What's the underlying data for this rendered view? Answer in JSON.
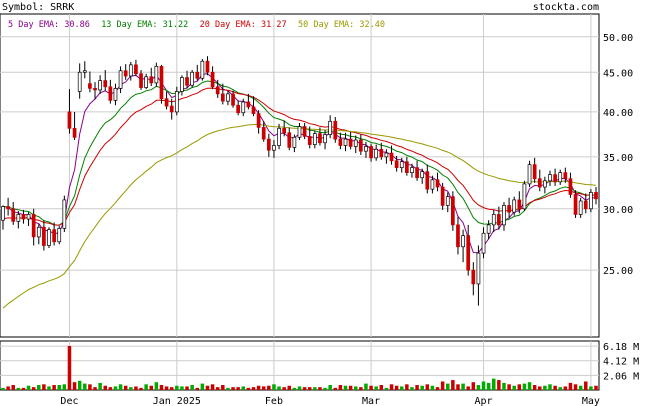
{
  "header": {
    "symbol_label": "Symbol: SRRK",
    "brand": "stockta.com"
  },
  "ema_legend": [
    {
      "label": "5 Day EMA: 30.86",
      "color": "#8b008b"
    },
    {
      "label": "13 Day EMA: 31.22",
      "color": "#008000"
    },
    {
      "label": "20 Day EMA: 31.27",
      "color": "#cc0000"
    },
    {
      "label": "50 Day EMA: 32.40",
      "color": "#999900"
    }
  ],
  "colors": {
    "up": "#00aa00",
    "down": "#cc0000",
    "grid": "#cccccc",
    "wick": "#000000"
  },
  "chart_data": {
    "type": "candlestick",
    "price_axis": {
      "ticks": [
        25,
        30,
        35,
        40,
        45,
        50
      ],
      "tick_labels": [
        "25.00",
        "30.00",
        "35.00",
        "40.00",
        "45.00",
        "50.00"
      ],
      "ylim": [
        20.5,
        53.5
      ],
      "scale": "log"
    },
    "volume_axis": {
      "ticks": [
        2.06,
        4.12,
        6.18
      ],
      "tick_labels": [
        "2.06 M",
        "4.12 M",
        "6.18 M"
      ],
      "ylim": [
        0,
        6.9
      ]
    },
    "month_labels": [
      {
        "label": "Dec",
        "index": 13
      },
      {
        "label": "Jan 2025",
        "index": 34
      },
      {
        "label": "Feb",
        "index": 53
      },
      {
        "label": "Mar",
        "index": 72
      },
      {
        "label": "Apr",
        "index": 94
      },
      {
        "label": "May",
        "index": 115
      }
    ],
    "ohlc": [
      [
        29.0,
        30.3,
        28.2,
        30.2
      ],
      [
        30.2,
        31.0,
        29.4,
        30.0
      ],
      [
        30.0,
        30.6,
        28.6,
        28.9
      ],
      [
        28.9,
        29.8,
        28.3,
        29.5
      ],
      [
        29.5,
        29.9,
        28.7,
        29.1
      ],
      [
        29.1,
        29.7,
        28.5,
        29.5
      ],
      [
        29.5,
        30.0,
        26.9,
        27.6
      ],
      [
        27.6,
        28.7,
        27.0,
        28.4
      ],
      [
        28.4,
        29.0,
        26.5,
        26.9
      ],
      [
        26.9,
        28.4,
        26.7,
        28.2
      ],
      [
        28.2,
        28.8,
        26.9,
        27.2
      ],
      [
        27.2,
        28.5,
        27.0,
        28.3
      ],
      [
        28.3,
        31.2,
        28.0,
        30.8
      ],
      [
        40.0,
        42.8,
        37.5,
        38.1
      ],
      [
        38.1,
        40.0,
        36.8,
        37.1
      ],
      [
        42.5,
        46.2,
        41.6,
        45.0
      ],
      [
        45.0,
        46.5,
        44.2,
        45.2
      ],
      [
        43.5,
        45.1,
        42.4,
        42.9
      ],
      [
        42.9,
        43.7,
        41.5,
        42.7
      ],
      [
        42.7,
        44.6,
        42.2,
        43.9
      ],
      [
        43.9,
        45.3,
        42.6,
        43.1
      ],
      [
        43.1,
        44.0,
        41.0,
        41.4
      ],
      [
        41.4,
        43.5,
        40.8,
        42.9
      ],
      [
        42.9,
        45.8,
        42.3,
        45.2
      ],
      [
        45.2,
        46.1,
        44.0,
        44.5
      ],
      [
        44.5,
        46.4,
        43.9,
        46.0
      ],
      [
        46.0,
        46.7,
        44.5,
        44.8
      ],
      [
        44.8,
        45.3,
        42.7,
        43.0
      ],
      [
        43.0,
        44.8,
        42.8,
        44.4
      ],
      [
        44.4,
        45.6,
        43.2,
        43.6
      ],
      [
        43.6,
        46.3,
        43.1,
        45.8
      ],
      [
        45.8,
        46.0,
        41.0,
        41.6
      ],
      [
        41.6,
        42.5,
        40.3,
        40.7
      ],
      [
        40.7,
        41.6,
        39.1,
        40.0
      ],
      [
        40.0,
        43.1,
        39.6,
        42.5
      ],
      [
        42.5,
        44.6,
        42.0,
        44.3
      ],
      [
        44.3,
        45.2,
        42.9,
        43.3
      ],
      [
        43.3,
        45.3,
        43.0,
        45.0
      ],
      [
        45.0,
        46.0,
        43.9,
        44.2
      ],
      [
        44.2,
        46.8,
        43.9,
        46.5
      ],
      [
        46.5,
        47.2,
        44.6,
        45.0
      ],
      [
        45.0,
        45.8,
        42.8,
        43.1
      ],
      [
        43.1,
        44.0,
        41.7,
        42.2
      ],
      [
        42.2,
        43.5,
        40.9,
        41.3
      ],
      [
        41.3,
        42.6,
        40.8,
        42.2
      ],
      [
        42.2,
        42.6,
        40.5,
        40.8
      ],
      [
        40.8,
        41.4,
        39.6,
        39.9
      ],
      [
        39.9,
        41.6,
        39.5,
        41.2
      ],
      [
        41.2,
        42.2,
        40.3,
        40.6
      ],
      [
        40.6,
        41.9,
        39.5,
        39.8
      ],
      [
        39.8,
        40.2,
        37.5,
        38.2
      ],
      [
        38.2,
        38.9,
        36.6,
        36.9
      ],
      [
        36.9,
        37.5,
        35.0,
        35.7
      ],
      [
        35.7,
        36.8,
        34.9,
        36.2
      ],
      [
        36.2,
        38.6,
        35.8,
        38.1
      ],
      [
        38.1,
        39.0,
        37.2,
        37.6
      ],
      [
        37.6,
        38.2,
        35.7,
        36.0
      ],
      [
        36.0,
        37.4,
        35.5,
        37.1
      ],
      [
        37.1,
        38.7,
        36.8,
        38.3
      ],
      [
        38.3,
        38.7,
        36.9,
        37.2
      ],
      [
        37.2,
        38.3,
        35.9,
        36.3
      ],
      [
        36.3,
        37.8,
        35.9,
        37.5
      ],
      [
        37.5,
        38.2,
        36.2,
        36.5
      ],
      [
        36.5,
        37.9,
        35.8,
        37.4
      ],
      [
        37.4,
        39.6,
        37.0,
        38.9
      ],
      [
        38.9,
        39.4,
        36.5,
        36.9
      ],
      [
        36.9,
        37.6,
        35.8,
        36.2
      ],
      [
        36.2,
        37.6,
        35.6,
        36.9
      ],
      [
        36.9,
        37.7,
        35.8,
        36.1
      ],
      [
        36.1,
        37.3,
        35.4,
        36.8
      ],
      [
        36.8,
        37.4,
        35.2,
        35.6
      ],
      [
        35.6,
        36.6,
        34.9,
        36.1
      ],
      [
        36.1,
        36.4,
        34.5,
        34.9
      ],
      [
        34.9,
        36.3,
        34.6,
        35.8
      ],
      [
        35.8,
        36.5,
        34.7,
        35.0
      ],
      [
        35.0,
        35.8,
        34.3,
        35.4
      ],
      [
        35.4,
        36.2,
        34.2,
        34.6
      ],
      [
        34.6,
        35.1,
        33.5,
        33.9
      ],
      [
        33.9,
        34.9,
        33.4,
        34.5
      ],
      [
        34.5,
        35.0,
        33.1,
        33.4
      ],
      [
        33.4,
        34.3,
        32.9,
        33.9
      ],
      [
        33.9,
        34.6,
        32.6,
        32.9
      ],
      [
        32.9,
        33.8,
        32.3,
        33.5
      ],
      [
        33.5,
        34.2,
        31.4,
        31.8
      ],
      [
        31.8,
        33.1,
        31.4,
        32.7
      ],
      [
        32.7,
        33.4,
        31.6,
        32.0
      ],
      [
        32.0,
        32.4,
        29.9,
        30.3
      ],
      [
        30.3,
        31.5,
        29.7,
        31.1
      ],
      [
        31.1,
        31.6,
        28.1,
        28.6
      ],
      [
        28.6,
        29.3,
        26.2,
        26.8
      ],
      [
        26.8,
        28.2,
        25.6,
        27.7
      ],
      [
        27.7,
        28.6,
        24.6,
        25.0
      ],
      [
        25.0,
        25.6,
        23.2,
        24.0
      ],
      [
        24.0,
        26.9,
        22.5,
        26.3
      ],
      [
        26.3,
        28.4,
        25.9,
        27.9
      ],
      [
        27.9,
        29.0,
        27.4,
        28.6
      ],
      [
        28.6,
        29.9,
        28.0,
        29.5
      ],
      [
        29.5,
        30.2,
        28.2,
        28.6
      ],
      [
        28.6,
        30.6,
        28.1,
        30.3
      ],
      [
        30.3,
        31.0,
        29.2,
        29.7
      ],
      [
        29.7,
        31.1,
        29.4,
        30.8
      ],
      [
        30.8,
        31.6,
        29.6,
        30.0
      ],
      [
        30.0,
        32.6,
        29.8,
        32.3
      ],
      [
        32.3,
        34.6,
        32.0,
        34.2
      ],
      [
        34.2,
        34.9,
        32.4,
        32.8
      ],
      [
        32.8,
        33.7,
        31.6,
        32.0
      ],
      [
        32.0,
        33.0,
        31.4,
        32.6
      ],
      [
        32.6,
        33.6,
        32.1,
        33.2
      ],
      [
        33.2,
        33.8,
        32.1,
        32.5
      ],
      [
        32.5,
        33.7,
        32.2,
        33.4
      ],
      [
        33.4,
        33.9,
        32.4,
        32.8
      ],
      [
        32.8,
        33.4,
        31.0,
        31.3
      ],
      [
        31.3,
        31.7,
        29.2,
        29.5
      ],
      [
        29.5,
        31.0,
        29.2,
        30.7
      ],
      [
        30.7,
        31.4,
        29.6,
        30.0
      ],
      [
        30.0,
        31.8,
        29.7,
        31.5
      ],
      [
        31.5,
        32.0,
        30.4,
        30.9
      ]
    ],
    "volume": [
      0.3,
      0.5,
      0.7,
      0.3,
      0.3,
      0.6,
      0.4,
      0.7,
      0.8,
      0.5,
      0.7,
      0.7,
      0.8,
      6.2,
      1.1,
      1.3,
      0.9,
      0.8,
      0.4,
      1.0,
      0.6,
      0.4,
      0.5,
      0.8,
      0.6,
      0.4,
      0.5,
      0.3,
      0.8,
      0.6,
      1.1,
      0.7,
      0.5,
      0.4,
      0.6,
      0.5,
      0.5,
      0.7,
      0.3,
      0.9,
      0.6,
      0.8,
      0.4,
      0.7,
      0.3,
      0.4,
      0.4,
      0.5,
      0.3,
      0.4,
      0.6,
      0.5,
      0.6,
      0.8,
      0.5,
      0.4,
      0.6,
      0.3,
      0.5,
      0.4,
      0.4,
      0.4,
      0.4,
      0.3,
      0.7,
      0.3,
      0.7,
      0.6,
      0.6,
      0.5,
      0.4,
      0.9,
      0.6,
      0.5,
      0.7,
      0.3,
      0.8,
      0.6,
      0.5,
      0.8,
      0.4,
      0.7,
      0.6,
      0.8,
      0.6,
      0.4,
      1.2,
      0.9,
      1.4,
      0.8,
      0.9,
      0.5,
      1.1,
      0.7,
      1.2,
      1.0,
      1.6,
      1.4,
      1.0,
      0.8,
      0.6,
      0.8,
      0.9,
      1.1,
      0.7,
      0.5,
      0.6,
      0.8,
      0.6,
      0.4,
      0.5,
      1.0,
      0.8,
      0.6,
      1.2,
      0.5,
      0.6
    ]
  }
}
